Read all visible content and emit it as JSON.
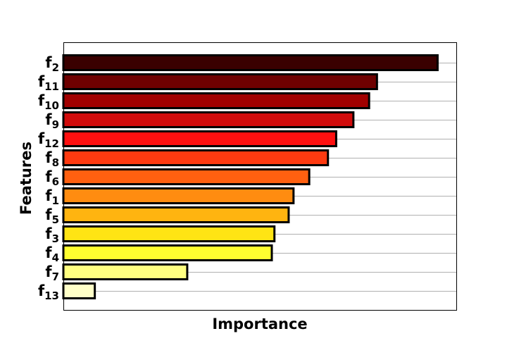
{
  "chart_data": {
    "type": "bar",
    "orientation": "horizontal",
    "title": "",
    "xlabel": "Importance",
    "ylabel": "Features",
    "xticks_visible": false,
    "grid": "horizontal",
    "legend": "none",
    "xlim": [
      0,
      1.05
    ],
    "categories": [
      {
        "base": "f",
        "sub": "2"
      },
      {
        "base": "f",
        "sub": "11"
      },
      {
        "base": "f",
        "sub": "10"
      },
      {
        "base": "f",
        "sub": "9"
      },
      {
        "base": "f",
        "sub": "12"
      },
      {
        "base": "f",
        "sub": "8"
      },
      {
        "base": "f",
        "sub": "6"
      },
      {
        "base": "f",
        "sub": "1"
      },
      {
        "base": "f",
        "sub": "5"
      },
      {
        "base": "f",
        "sub": "3"
      },
      {
        "base": "f",
        "sub": "4"
      },
      {
        "base": "f",
        "sub": "7"
      },
      {
        "base": "f",
        "sub": "13"
      }
    ],
    "values": [
      1.0,
      0.838,
      0.817,
      0.775,
      0.729,
      0.707,
      0.657,
      0.615,
      0.602,
      0.564,
      0.557,
      0.331,
      0.084
    ],
    "colors": [
      "#3a0000",
      "#6e0000",
      "#a10000",
      "#d10c0c",
      "#ff1010",
      "#ff3a10",
      "#ff6010",
      "#ff8c10",
      "#ffb410",
      "#ffe414",
      "#ffff30",
      "#ffff80",
      "#ffffc8"
    ]
  }
}
